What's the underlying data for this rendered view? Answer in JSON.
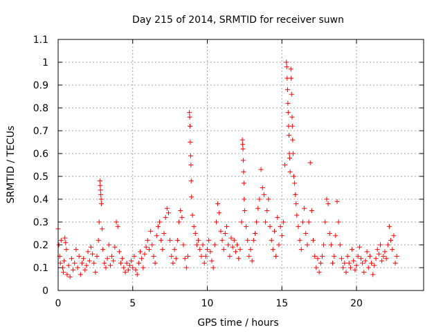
{
  "chart_data": {
    "type": "scatter",
    "title": "Day 215 of 2014, SRMTID for receiver suwn",
    "xlabel": "GPS time / hours",
    "ylabel": "SRMTID / TECUs",
    "xlim": [
      0,
      24.5
    ],
    "ylim": [
      0,
      1.1
    ],
    "xticks": [
      0,
      5,
      10,
      15,
      20
    ],
    "xtick_labels": [
      "0",
      "5",
      "10",
      "15",
      "20"
    ],
    "yticks": [
      0,
      0.1,
      0.2,
      0.3,
      0.4,
      0.5,
      0.6,
      0.7,
      0.8,
      0.9,
      1,
      1.1
    ],
    "ytick_labels": [
      "0",
      "0.1",
      "0.2",
      "0.3",
      "0.4",
      "0.5",
      "0.6",
      "0.7",
      "0.8",
      "0.9",
      "1",
      "1.1"
    ],
    "grid": true,
    "marker": "+",
    "color": "#ff0000",
    "series": [
      {
        "name": "SRMTID",
        "points": [
          [
            0.0,
            0.27
          ],
          [
            0.05,
            0.2
          ],
          [
            0.1,
            0.15
          ],
          [
            0.15,
            0.12
          ],
          [
            0.2,
            0.22
          ],
          [
            0.3,
            0.1
          ],
          [
            0.35,
            0.08
          ],
          [
            0.4,
            0.13
          ],
          [
            0.45,
            0.23
          ],
          [
            0.5,
            0.21
          ],
          [
            0.55,
            0.18
          ],
          [
            0.6,
            0.07
          ],
          [
            0.7,
            0.11
          ],
          [
            0.8,
            0.06
          ],
          [
            0.9,
            0.14
          ],
          [
            1.0,
            0.09
          ],
          [
            1.1,
            0.12
          ],
          [
            1.2,
            0.18
          ],
          [
            1.3,
            0.1
          ],
          [
            1.4,
            0.15
          ],
          [
            1.5,
            0.07
          ],
          [
            1.6,
            0.12
          ],
          [
            1.7,
            0.14
          ],
          [
            1.8,
            0.09
          ],
          [
            1.9,
            0.11
          ],
          [
            2.0,
            0.17
          ],
          [
            2.1,
            0.13
          ],
          [
            2.2,
            0.19
          ],
          [
            2.3,
            0.16
          ],
          [
            2.4,
            0.12
          ],
          [
            2.5,
            0.08
          ],
          [
            2.6,
            0.15
          ],
          [
            2.7,
            0.22
          ],
          [
            2.75,
            0.3
          ],
          [
            2.8,
            0.48
          ],
          [
            2.82,
            0.46
          ],
          [
            2.84,
            0.44
          ],
          [
            2.86,
            0.42
          ],
          [
            2.88,
            0.4
          ],
          [
            2.9,
            0.38
          ],
          [
            2.95,
            0.27
          ],
          [
            3.0,
            0.18
          ],
          [
            3.1,
            0.12
          ],
          [
            3.2,
            0.1
          ],
          [
            3.3,
            0.14
          ],
          [
            3.4,
            0.2
          ],
          [
            3.5,
            0.11
          ],
          [
            3.6,
            0.15
          ],
          [
            3.7,
            0.13
          ],
          [
            3.8,
            0.19
          ],
          [
            3.9,
            0.3
          ],
          [
            4.0,
            0.28
          ],
          [
            4.1,
            0.17
          ],
          [
            4.2,
            0.12
          ],
          [
            4.3,
            0.14
          ],
          [
            4.4,
            0.1
          ],
          [
            4.5,
            0.08
          ],
          [
            4.6,
            0.12
          ],
          [
            4.7,
            0.09
          ],
          [
            4.8,
            0.11
          ],
          [
            4.9,
            0.13
          ],
          [
            5.0,
            0.1
          ],
          [
            5.1,
            0.15
          ],
          [
            5.2,
            0.09
          ],
          [
            5.3,
            0.07
          ],
          [
            5.4,
            0.12
          ],
          [
            5.5,
            0.17
          ],
          [
            5.6,
            0.14
          ],
          [
            5.7,
            0.1
          ],
          [
            5.8,
            0.16
          ],
          [
            5.9,
            0.19
          ],
          [
            6.0,
            0.22
          ],
          [
            6.1,
            0.18
          ],
          [
            6.2,
            0.26
          ],
          [
            6.3,
            0.2
          ],
          [
            6.4,
            0.15
          ],
          [
            6.5,
            0.12
          ],
          [
            6.6,
            0.24
          ],
          [
            6.7,
            0.28
          ],
          [
            6.8,
            0.3
          ],
          [
            6.9,
            0.22
          ],
          [
            7.0,
            0.18
          ],
          [
            7.1,
            0.25
          ],
          [
            7.2,
            0.32
          ],
          [
            7.3,
            0.36
          ],
          [
            7.4,
            0.34
          ],
          [
            7.5,
            0.22
          ],
          [
            7.6,
            0.15
          ],
          [
            7.7,
            0.12
          ],
          [
            7.8,
            0.18
          ],
          [
            7.9,
            0.14
          ],
          [
            8.0,
            0.22
          ],
          [
            8.1,
            0.3
          ],
          [
            8.2,
            0.35
          ],
          [
            8.3,
            0.32
          ],
          [
            8.4,
            0.2
          ],
          [
            8.5,
            0.14
          ],
          [
            8.6,
            0.1
          ],
          [
            8.7,
            0.15
          ],
          [
            8.8,
            0.78
          ],
          [
            8.82,
            0.76
          ],
          [
            8.84,
            0.72
          ],
          [
            8.86,
            0.65
          ],
          [
            8.88,
            0.59
          ],
          [
            8.9,
            0.55
          ],
          [
            8.92,
            0.48
          ],
          [
            8.94,
            0.41
          ],
          [
            9.0,
            0.33
          ],
          [
            9.1,
            0.28
          ],
          [
            9.2,
            0.25
          ],
          [
            9.3,
            0.2
          ],
          [
            9.4,
            0.22
          ],
          [
            9.5,
            0.18
          ],
          [
            9.6,
            0.15
          ],
          [
            9.7,
            0.2
          ],
          [
            9.8,
            0.12
          ],
          [
            9.9,
            0.15
          ],
          [
            10.0,
            0.18
          ],
          [
            10.1,
            0.22
          ],
          [
            10.2,
            0.17
          ],
          [
            10.3,
            0.13
          ],
          [
            10.4,
            0.1
          ],
          [
            10.5,
            0.2
          ],
          [
            10.6,
            0.3
          ],
          [
            10.7,
            0.38
          ],
          [
            10.8,
            0.34
          ],
          [
            10.9,
            0.26
          ],
          [
            11.0,
            0.22
          ],
          [
            11.1,
            0.18
          ],
          [
            11.2,
            0.25
          ],
          [
            11.3,
            0.28
          ],
          [
            11.4,
            0.2
          ],
          [
            11.5,
            0.15
          ],
          [
            11.6,
            0.23
          ],
          [
            11.7,
            0.19
          ],
          [
            11.8,
            0.22
          ],
          [
            11.9,
            0.17
          ],
          [
            12.0,
            0.2
          ],
          [
            12.1,
            0.14
          ],
          [
            12.2,
            0.18
          ],
          [
            12.3,
            0.3
          ],
          [
            12.35,
            0.66
          ],
          [
            12.37,
            0.64
          ],
          [
            12.39,
            0.62
          ],
          [
            12.41,
            0.57
          ],
          [
            12.43,
            0.52
          ],
          [
            12.45,
            0.47
          ],
          [
            12.47,
            0.4
          ],
          [
            12.5,
            0.35
          ],
          [
            12.6,
            0.28
          ],
          [
            12.7,
            0.22
          ],
          [
            12.8,
            0.15
          ],
          [
            12.9,
            0.18
          ],
          [
            13.0,
            0.13
          ],
          [
            13.1,
            0.22
          ],
          [
            13.2,
            0.25
          ],
          [
            13.3,
            0.3
          ],
          [
            13.4,
            0.36
          ],
          [
            13.5,
            0.4
          ],
          [
            13.6,
            0.53
          ],
          [
            13.7,
            0.45
          ],
          [
            13.8,
            0.42
          ],
          [
            13.9,
            0.3
          ],
          [
            14.0,
            0.35
          ],
          [
            14.1,
            0.4
          ],
          [
            14.2,
            0.28
          ],
          [
            14.3,
            0.22
          ],
          [
            14.4,
            0.18
          ],
          [
            14.5,
            0.26
          ],
          [
            14.6,
            0.15
          ],
          [
            14.7,
            0.32
          ],
          [
            14.8,
            0.2
          ],
          [
            14.9,
            0.28
          ],
          [
            15.0,
            0.24
          ],
          [
            15.1,
            0.3
          ],
          [
            15.2,
            0.55
          ],
          [
            15.3,
            1.0
          ],
          [
            15.32,
            0.98
          ],
          [
            15.35,
            0.93
          ],
          [
            15.38,
            0.88
          ],
          [
            15.4,
            0.82
          ],
          [
            15.42,
            0.78
          ],
          [
            15.45,
            0.72
          ],
          [
            15.48,
            0.68
          ],
          [
            15.5,
            0.6
          ],
          [
            15.52,
            0.58
          ],
          [
            15.55,
            0.52
          ],
          [
            15.6,
            0.97
          ],
          [
            15.62,
            0.93
          ],
          [
            15.65,
            0.86
          ],
          [
            15.68,
            0.76
          ],
          [
            15.7,
            0.72
          ],
          [
            15.72,
            0.66
          ],
          [
            15.75,
            0.6
          ],
          [
            15.8,
            0.5
          ],
          [
            15.85,
            0.47
          ],
          [
            15.9,
            0.42
          ],
          [
            15.95,
            0.38
          ],
          [
            16.0,
            0.33
          ],
          [
            16.1,
            0.28
          ],
          [
            16.2,
            0.22
          ],
          [
            16.3,
            0.18
          ],
          [
            16.4,
            0.3
          ],
          [
            16.5,
            0.36
          ],
          [
            16.6,
            0.25
          ],
          [
            16.7,
            0.2
          ],
          [
            16.8,
            0.3
          ],
          [
            16.9,
            0.56
          ],
          [
            17.0,
            0.35
          ],
          [
            17.1,
            0.22
          ],
          [
            17.2,
            0.15
          ],
          [
            17.3,
            0.1
          ],
          [
            17.4,
            0.14
          ],
          [
            17.5,
            0.08
          ],
          [
            17.6,
            0.12
          ],
          [
            17.7,
            0.15
          ],
          [
            17.8,
            0.2
          ],
          [
            17.9,
            0.3
          ],
          [
            18.0,
            0.4
          ],
          [
            18.1,
            0.38
          ],
          [
            18.2,
            0.25
          ],
          [
            18.3,
            0.2
          ],
          [
            18.4,
            0.12
          ],
          [
            18.5,
            0.15
          ],
          [
            18.6,
            0.24
          ],
          [
            18.7,
            0.39
          ],
          [
            18.8,
            0.3
          ],
          [
            18.9,
            0.2
          ],
          [
            19.0,
            0.14
          ],
          [
            19.1,
            0.1
          ],
          [
            19.2,
            0.12
          ],
          [
            19.3,
            0.08
          ],
          [
            19.4,
            0.15
          ],
          [
            19.5,
            0.12
          ],
          [
            19.6,
            0.1
          ],
          [
            19.7,
            0.18
          ],
          [
            19.8,
            0.13
          ],
          [
            19.9,
            0.09
          ],
          [
            20.0,
            0.11
          ],
          [
            20.1,
            0.15
          ],
          [
            20.2,
            0.19
          ],
          [
            20.3,
            0.14
          ],
          [
            20.4,
            0.12
          ],
          [
            20.5,
            0.08
          ],
          [
            20.6,
            0.13
          ],
          [
            20.7,
            0.17
          ],
          [
            20.8,
            0.1
          ],
          [
            20.9,
            0.15
          ],
          [
            21.0,
            0.12
          ],
          [
            21.1,
            0.07
          ],
          [
            21.2,
            0.11
          ],
          [
            21.3,
            0.14
          ],
          [
            21.4,
            0.18
          ],
          [
            21.5,
            0.16
          ],
          [
            21.6,
            0.2
          ],
          [
            21.7,
            0.13
          ],
          [
            21.8,
            0.15
          ],
          [
            21.9,
            0.17
          ],
          [
            22.0,
            0.14
          ],
          [
            22.1,
            0.2
          ],
          [
            22.2,
            0.28
          ],
          [
            22.3,
            0.22
          ],
          [
            22.4,
            0.18
          ],
          [
            22.5,
            0.24
          ],
          [
            22.6,
            0.12
          ],
          [
            22.7,
            0.15
          ]
        ]
      }
    ]
  }
}
